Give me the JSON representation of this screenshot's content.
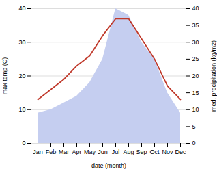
{
  "chart_data": {
    "type": "line",
    "xlabel": "date (month)",
    "ylabel": "max temp (C)",
    "y2label": "med. precipitation (kg/m2)",
    "categories": [
      "Jan",
      "Feb",
      "Mar",
      "Apr",
      "May",
      "Jun",
      "Jul",
      "Aug",
      "Sep",
      "Oct",
      "Nov",
      "Dec"
    ],
    "series": [
      {
        "type": "area",
        "axis": "y2",
        "color": "#c5cef0",
        "values": [
          9,
          10,
          12,
          14,
          18,
          25,
          40,
          38,
          30,
          25,
          15,
          9
        ]
      },
      {
        "type": "line",
        "color": "#c0392b",
        "values": [
          13,
          16,
          19,
          23,
          26,
          32,
          37,
          37,
          31,
          25,
          17,
          13
        ]
      }
    ],
    "ylim": [
      0,
      40
    ],
    "yticks": [
      0,
      10,
      20,
      30,
      40
    ],
    "y2lim": [
      0,
      40
    ],
    "y2ticks": [
      0,
      5,
      10,
      15,
      20,
      25,
      30,
      35,
      40
    ],
    "grid": true
  }
}
